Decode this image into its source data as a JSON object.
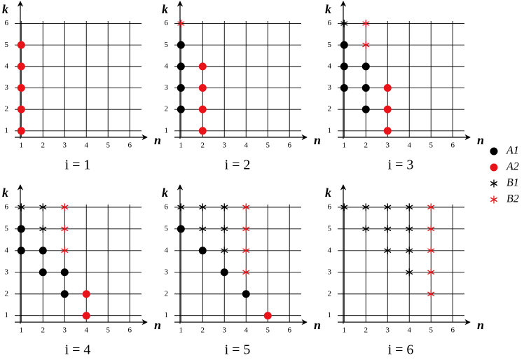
{
  "legend": [
    {
      "name": "A1",
      "color": "#000000",
      "marker": "circle"
    },
    {
      "name": "A2",
      "color": "#e8141a",
      "marker": "circle"
    },
    {
      "name": "B1",
      "color": "#000000",
      "marker": "asterisk"
    },
    {
      "name": "B2",
      "color": "#e8141a",
      "marker": "asterisk"
    }
  ],
  "chart_data": [
    {
      "type": "scatter",
      "title": "i = 1",
      "xlabel": "n",
      "ylabel": "k",
      "xlim": [
        0.7,
        6.8
      ],
      "ylim": [
        0.7,
        6.9
      ],
      "xticks": [
        1,
        2,
        3,
        4,
        5,
        6
      ],
      "yticks": [
        1,
        2,
        3,
        4,
        5,
        6
      ],
      "grid": true,
      "series": [
        {
          "x": [],
          "y": []
        },
        {
          "x": [
            1,
            1,
            1,
            1,
            1
          ],
          "y": [
            1,
            2,
            3,
            4,
            5
          ]
        },
        {
          "x": [],
          "y": []
        },
        {
          "x": [],
          "y": []
        }
      ]
    },
    {
      "type": "scatter",
      "title": "i = 2",
      "xlabel": "n",
      "ylabel": "k",
      "xlim": [
        0.7,
        6.8
      ],
      "ylim": [
        0.7,
        6.9
      ],
      "xticks": [
        1,
        2,
        3,
        4,
        5,
        6
      ],
      "yticks": [
        1,
        2,
        3,
        4,
        5,
        6
      ],
      "grid": true,
      "series": [
        {
          "x": [
            1,
            1,
            1,
            1
          ],
          "y": [
            2,
            3,
            4,
            5
          ]
        },
        {
          "x": [
            2,
            2,
            2,
            2
          ],
          "y": [
            1,
            2,
            3,
            4
          ]
        },
        {
          "x": [],
          "y": []
        },
        {
          "x": [
            1
          ],
          "y": [
            6
          ]
        }
      ]
    },
    {
      "type": "scatter",
      "title": "i = 3",
      "xlabel": "n",
      "ylabel": "k",
      "xlim": [
        0.7,
        6.8
      ],
      "ylim": [
        0.7,
        6.9
      ],
      "xticks": [
        1,
        2,
        3,
        4,
        5,
        6
      ],
      "yticks": [
        1,
        2,
        3,
        4,
        5,
        6
      ],
      "grid": true,
      "series": [
        {
          "x": [
            1,
            1,
            1,
            2,
            2,
            2
          ],
          "y": [
            3,
            4,
            5,
            2,
            3,
            4
          ]
        },
        {
          "x": [
            3,
            3,
            3
          ],
          "y": [
            1,
            2,
            3
          ]
        },
        {
          "x": [
            1
          ],
          "y": [
            6
          ]
        },
        {
          "x": [
            2,
            2
          ],
          "y": [
            5,
            6
          ]
        }
      ]
    },
    {
      "type": "scatter",
      "title": "i = 4",
      "xlabel": "n",
      "ylabel": "k",
      "xlim": [
        0.7,
        6.8
      ],
      "ylim": [
        0.7,
        6.9
      ],
      "xticks": [
        1,
        2,
        3,
        4,
        5,
        6
      ],
      "yticks": [
        1,
        2,
        3,
        4,
        5,
        6
      ],
      "grid": true,
      "series": [
        {
          "x": [
            1,
            1,
            2,
            2,
            3,
            3
          ],
          "y": [
            4,
            5,
            3,
            4,
            2,
            3
          ]
        },
        {
          "x": [
            4,
            4
          ],
          "y": [
            1,
            2
          ]
        },
        {
          "x": [
            1,
            2,
            2
          ],
          "y": [
            6,
            5,
            6
          ]
        },
        {
          "x": [
            3,
            3,
            3
          ],
          "y": [
            4,
            5,
            6
          ]
        }
      ]
    },
    {
      "type": "scatter",
      "title": "i = 5",
      "xlabel": "n",
      "ylabel": "k",
      "xlim": [
        0.7,
        6.8
      ],
      "ylim": [
        0.7,
        6.9
      ],
      "xticks": [
        1,
        2,
        3,
        4,
        5,
        6
      ],
      "yticks": [
        1,
        2,
        3,
        4,
        5,
        6
      ],
      "grid": true,
      "series": [
        {
          "x": [
            1,
            2,
            3,
            4
          ],
          "y": [
            5,
            4,
            3,
            2
          ]
        },
        {
          "x": [
            5
          ],
          "y": [
            1
          ]
        },
        {
          "x": [
            1,
            2,
            2,
            3,
            3,
            3
          ],
          "y": [
            6,
            5,
            6,
            4,
            5,
            6
          ]
        },
        {
          "x": [
            4,
            4,
            4,
            4
          ],
          "y": [
            3,
            4,
            5,
            6
          ]
        }
      ]
    },
    {
      "type": "scatter",
      "title": "i = 6",
      "xlabel": "n",
      "ylabel": "k",
      "xlim": [
        0.7,
        6.8
      ],
      "ylim": [
        0.7,
        6.9
      ],
      "xticks": [
        1,
        2,
        3,
        4,
        5,
        6
      ],
      "yticks": [
        1,
        2,
        3,
        4,
        5,
        6
      ],
      "grid": true,
      "series": [
        {
          "x": [],
          "y": []
        },
        {
          "x": [],
          "y": []
        },
        {
          "x": [
            1,
            2,
            2,
            3,
            3,
            3,
            4,
            4,
            4,
            4
          ],
          "y": [
            6,
            5,
            6,
            4,
            5,
            6,
            3,
            4,
            5,
            6
          ]
        },
        {
          "x": [
            5,
            5,
            5,
            5,
            5
          ],
          "y": [
            2,
            3,
            4,
            5,
            6
          ]
        }
      ]
    }
  ]
}
